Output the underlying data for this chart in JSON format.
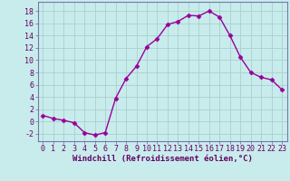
{
  "hours": [
    0,
    1,
    2,
    3,
    4,
    5,
    6,
    7,
    8,
    9,
    10,
    11,
    12,
    13,
    14,
    15,
    16,
    17,
    18,
    19,
    20,
    21,
    22,
    23
  ],
  "windchill": [
    1,
    0.5,
    0.2,
    -0.2,
    -1.8,
    -2.2,
    -1.8,
    3.8,
    7.0,
    9.0,
    12.2,
    13.5,
    15.8,
    16.3,
    17.3,
    17.2,
    18.0,
    17.0,
    14.0,
    10.5,
    8.0,
    7.2,
    6.8,
    5.2
  ],
  "line_color": "#990099",
  "marker": "D",
  "marker_size": 2.5,
  "bg_color": "#c8ecec",
  "grid_color": "#aacfcf",
  "xlabel": "Windchill (Refroidissement éolien,°C)",
  "yticks": [
    -2,
    0,
    2,
    4,
    6,
    8,
    10,
    12,
    14,
    16,
    18
  ],
  "xlim": [
    -0.5,
    23.5
  ],
  "ylim": [
    -3.2,
    19.5
  ],
  "xlabel_fontsize": 6.5,
  "tick_fontsize": 6.0,
  "spine_color": "#7777aa"
}
